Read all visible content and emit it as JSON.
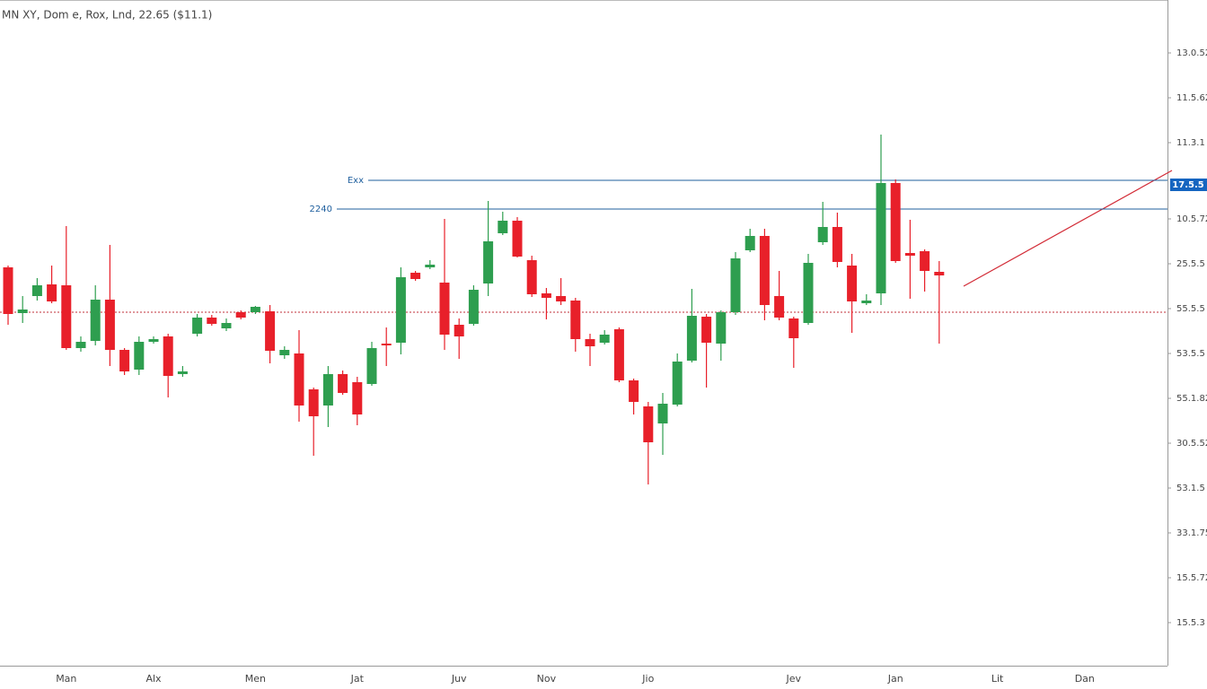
{
  "chart_data": {
    "type": "candlestick",
    "title": "MN XY, Dom e, Rox, Lnd, 22.65 ($11.1)",
    "categories": [
      null,
      null,
      null,
      null,
      "Man",
      null,
      null,
      null,
      null,
      null,
      "Alx",
      null,
      null,
      null,
      null,
      null,
      null,
      "Men",
      null,
      null,
      null,
      null,
      null,
      null,
      "Jat",
      null,
      null,
      null,
      null,
      null,
      null,
      "Juv",
      null,
      null,
      null,
      null,
      null,
      "Nov",
      null,
      null,
      null,
      null,
      null,
      null,
      "Jio",
      null,
      null,
      null,
      null,
      null,
      null,
      null,
      null,
      null,
      "Jev",
      null,
      null,
      null,
      null,
      null,
      null,
      "Jan",
      null,
      null,
      null,
      null,
      null,
      null,
      "Lit",
      null,
      null,
      null,
      null,
      null,
      "Dan",
      null,
      null,
      null,
      null,
      null
    ],
    "open": [
      23.22,
      22.2,
      22.58,
      22.84,
      22.82,
      21.42,
      21.58,
      22.5,
      21.38,
      20.94,
      21.56,
      21.68,
      20.84,
      21.74,
      22.1,
      21.86,
      22.22,
      22.22,
      22.24,
      21.26,
      21.3,
      20.5,
      20.14,
      20.84,
      20.66,
      20.62,
      21.52,
      21.54,
      23.1,
      23.22,
      22.88,
      21.94,
      21.96,
      22.86,
      23.98,
      24.26,
      23.38,
      22.64,
      22.58,
      22.48,
      21.62,
      21.54,
      21.84,
      20.7,
      20.12,
      19.74,
      20.16,
      21.14,
      22.12,
      21.52,
      22.22,
      23.6,
      23.92,
      22.58,
      22.08,
      21.98,
      23.78,
      24.12,
      23.26,
      22.42,
      22.64,
      25.1,
      23.54,
      23.58,
      23.12,
      null,
      null,
      null,
      null,
      null,
      null,
      null,
      null,
      null,
      null,
      null,
      null,
      null,
      null,
      null
    ],
    "high": [
      23.26,
      22.58,
      22.98,
      23.26,
      24.14,
      21.68,
      22.82,
      23.72,
      21.42,
      21.68,
      21.68,
      21.74,
      21.02,
      22.18,
      22.16,
      22.08,
      22.26,
      22.36,
      22.38,
      21.46,
      21.82,
      20.54,
      21.02,
      20.92,
      20.78,
      21.56,
      21.88,
      23.22,
      23.14,
      23.38,
      24.3,
      22.08,
      22.82,
      24.7,
      24.46,
      24.34,
      23.48,
      22.76,
      22.98,
      22.54,
      21.74,
      21.82,
      21.88,
      20.74,
      20.22,
      20.42,
      21.3,
      22.74,
      22.18,
      22.26,
      23.56,
      24.08,
      24.08,
      23.14,
      22.12,
      23.52,
      24.68,
      24.44,
      23.52,
      22.62,
      26.18,
      25.18,
      24.28,
      23.62,
      23.36,
      null,
      null,
      null,
      null,
      null,
      null,
      null,
      null,
      null,
      null,
      null,
      null,
      null,
      null,
      null
    ],
    "low": [
      21.94,
      21.98,
      22.48,
      22.42,
      21.38,
      21.34,
      21.48,
      21.02,
      20.82,
      20.82,
      21.52,
      20.32,
      20.78,
      21.68,
      21.92,
      21.8,
      22.06,
      22.18,
      21.08,
      21.18,
      19.78,
      19.02,
      19.66,
      20.38,
      19.7,
      20.58,
      21.02,
      21.28,
      22.92,
      23.18,
      21.38,
      21.18,
      21.92,
      22.58,
      23.94,
      23.44,
      22.56,
      22.06,
      22.38,
      21.34,
      21.02,
      21.5,
      20.66,
      19.94,
      18.38,
      19.04,
      20.12,
      21.1,
      20.54,
      21.14,
      22.16,
      23.56,
      22.04,
      22.04,
      20.98,
      21.94,
      23.72,
      23.22,
      21.76,
      22.38,
      22.38,
      23.32,
      22.52,
      22.68,
      21.52,
      null,
      null,
      null,
      null,
      null,
      null,
      null,
      null,
      null,
      null,
      null,
      null,
      null,
      null,
      null
    ],
    "close": [
      22.18,
      22.28,
      22.82,
      22.46,
      21.42,
      21.56,
      22.5,
      21.38,
      20.9,
      21.56,
      21.62,
      20.8,
      20.9,
      22.1,
      21.96,
      21.98,
      22.1,
      22.34,
      21.36,
      21.38,
      20.14,
      19.9,
      20.84,
      20.42,
      19.94,
      21.42,
      21.48,
      23.0,
      22.96,
      23.28,
      21.72,
      21.68,
      22.72,
      23.8,
      24.26,
      23.46,
      22.62,
      22.54,
      22.46,
      21.62,
      21.46,
      21.72,
      20.7,
      20.22,
      19.32,
      20.18,
      21.12,
      22.14,
      21.54,
      22.22,
      23.42,
      23.92,
      22.38,
      22.1,
      21.64,
      23.32,
      24.12,
      23.34,
      22.46,
      22.48,
      25.1,
      23.36,
      23.48,
      23.14,
      23.04,
      null,
      null,
      null,
      null,
      null,
      null,
      null,
      null,
      null,
      null,
      null,
      null,
      null,
      null,
      null
    ],
    "up_color": "#2e9e4f",
    "down_color": "#e8202a",
    "ylim": [
      14.34,
      29.18
    ],
    "yticks": [
      {
        "value": 28,
        "label": "13.0.52"
      },
      {
        "value": 27,
        "label": "11.5.62"
      },
      {
        "value": 26,
        "label": "11.3.1"
      },
      {
        "value": 24.3,
        "label": "10.5.72"
      },
      {
        "value": 23.3,
        "label": "25.5.5"
      },
      {
        "value": 22.3,
        "label": "55.5.5"
      },
      {
        "value": 21.3,
        "label": "53.5.5"
      },
      {
        "value": 20.3,
        "label": "55.1.82"
      },
      {
        "value": 19.3,
        "label": "30.5.52"
      },
      {
        "value": 18.3,
        "label": "53.1.5"
      },
      {
        "value": 17.3,
        "label": "33.1.75"
      },
      {
        "value": 16.3,
        "label": "15.5.72"
      },
      {
        "value": 15.3,
        "label": "15.5.3"
      }
    ],
    "levels": [
      {
        "label": "Exx",
        "value": 25.16,
        "color": "#1f5f9e"
      },
      {
        "label": "2240",
        "value": 24.52,
        "color": "#1f5f9e"
      }
    ],
    "reference_line": {
      "value": 22.22,
      "color": "#c0303a"
    },
    "last_price": {
      "value": 25.06,
      "label": "17.5.5",
      "color": "#1565c0"
    }
  }
}
